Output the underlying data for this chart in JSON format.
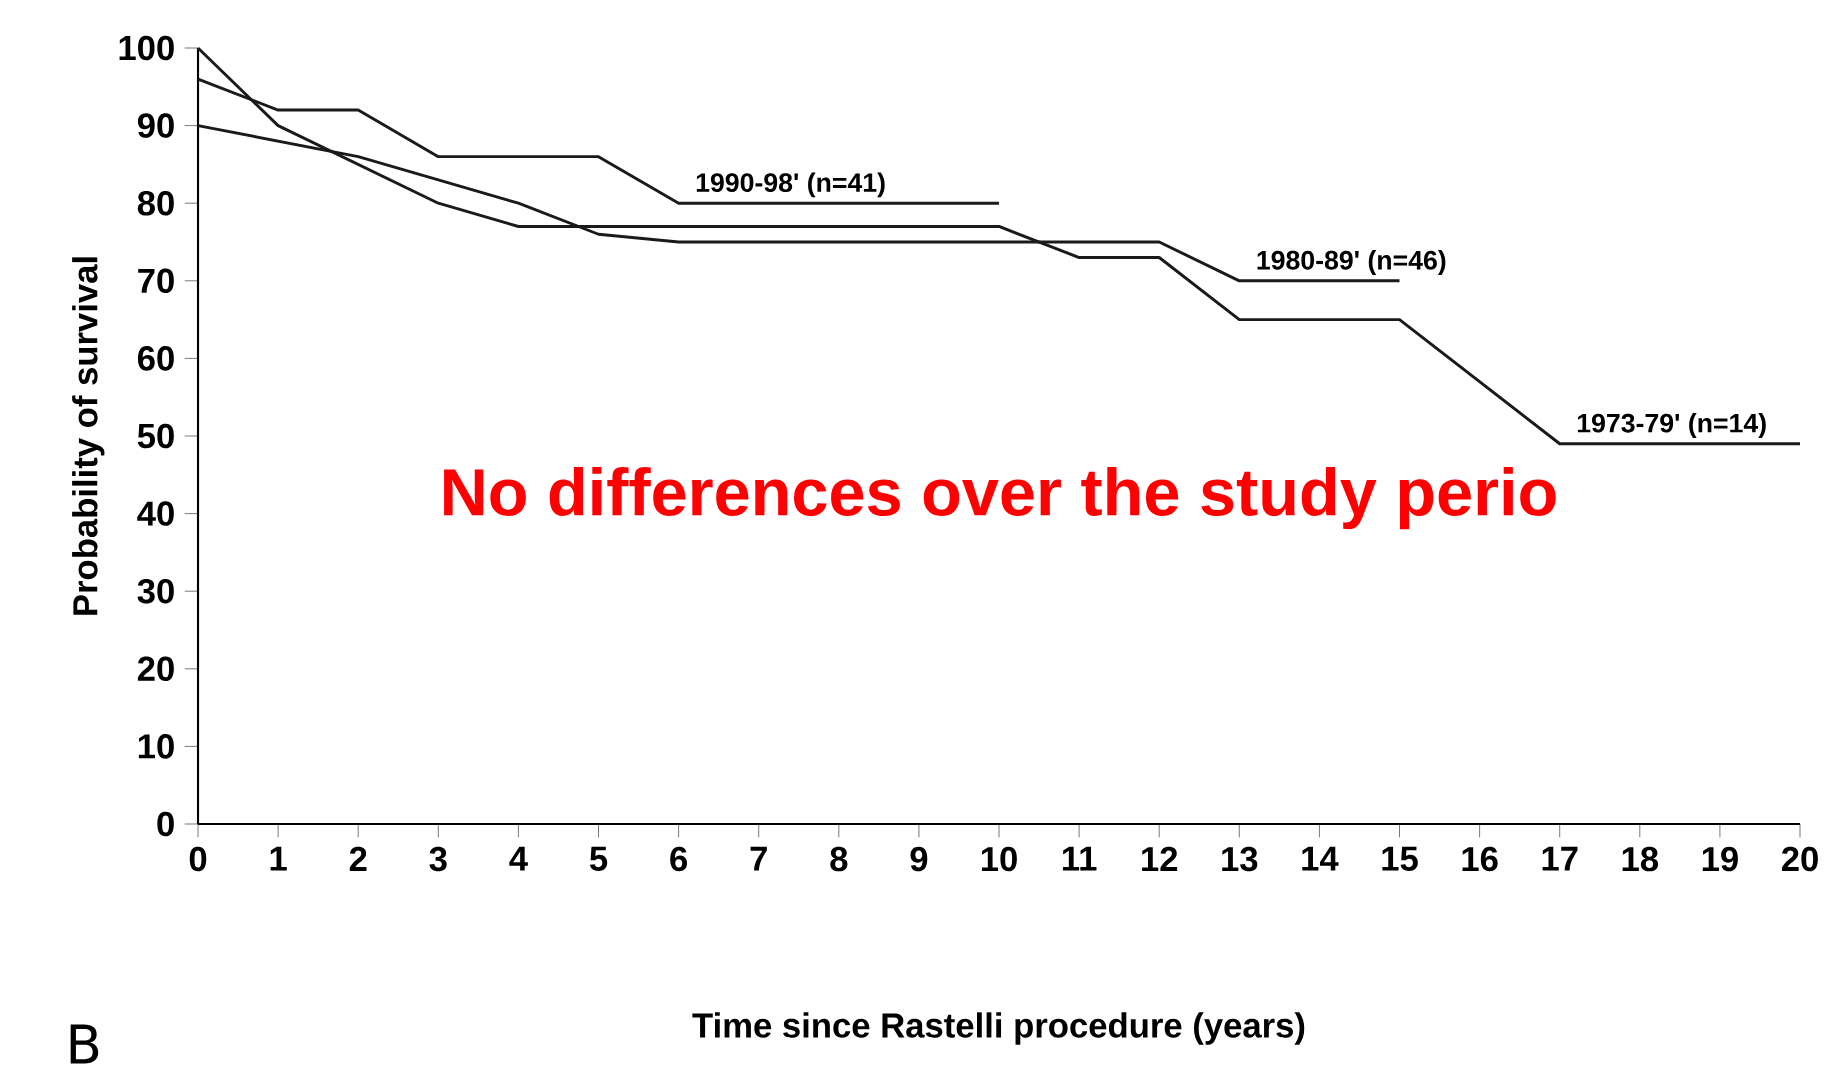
{
  "chart_data": {
    "type": "line",
    "xlabel": "Time since Rastelli procedure (years)",
    "ylabel": "Probability of survival",
    "xlim": [
      0,
      20
    ],
    "xticks": [
      0,
      1,
      2,
      3,
      4,
      5,
      6,
      7,
      8,
      9,
      10,
      11,
      12,
      13,
      14,
      15,
      16,
      17,
      18,
      19,
      20
    ],
    "ylim": [
      0,
      100
    ],
    "yticks": [
      0,
      10,
      20,
      30,
      40,
      50,
      60,
      70,
      80,
      90,
      100
    ],
    "grid": false,
    "legend": false,
    "marker": "none",
    "line_style": "solid",
    "series": [
      {
        "name": "1990-98'  (n=41)",
        "color": "#1a1a1a",
        "x": [
          0,
          1,
          2,
          3,
          5,
          6,
          10
        ],
        "values": [
          96,
          92,
          92,
          86,
          86,
          80,
          80
        ]
      },
      {
        "name": "1980-89' (n=46)",
        "color": "#1a1a1a",
        "x": [
          0,
          2,
          3,
          4,
          5,
          6,
          12,
          13,
          15
        ],
        "values": [
          90,
          86,
          83,
          80,
          76,
          75,
          75,
          70,
          70
        ]
      },
      {
        "name": "1973-79' (n=14)",
        "color": "#1a1a1a",
        "x": [
          0,
          1,
          2,
          3,
          4,
          10,
          11,
          12,
          13,
          15,
          17,
          20
        ],
        "values": [
          100,
          90,
          85,
          80,
          77,
          77,
          73,
          73,
          65,
          65,
          49,
          49
        ]
      }
    ],
    "annotations": [
      "No differences over the study perio",
      "B"
    ]
  }
}
